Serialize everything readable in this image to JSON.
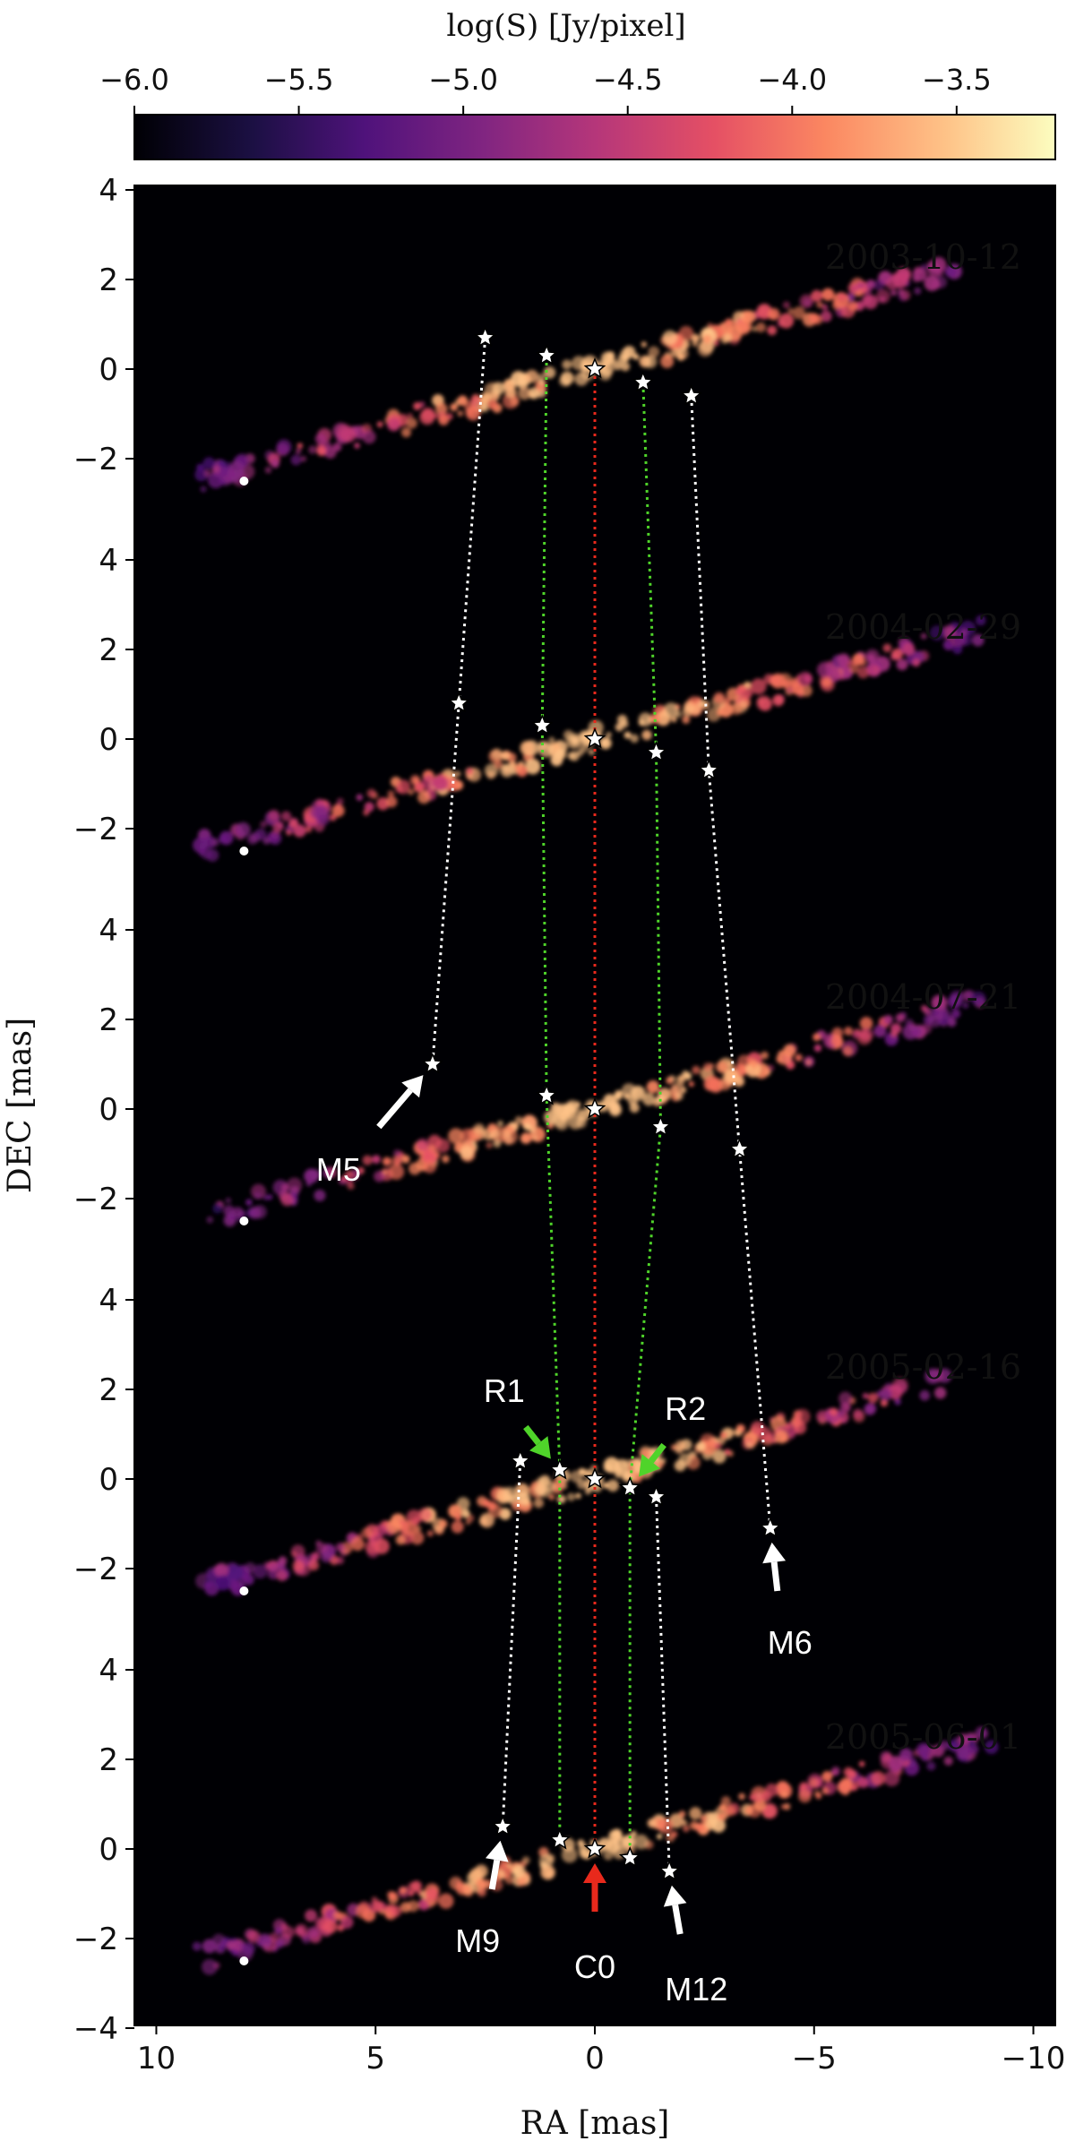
{
  "chart_data": {
    "type": "image",
    "colorbar": {
      "label": "log(S) [Jy/pixel]",
      "range": [
        -6.0,
        -3.2
      ],
      "ticks": [
        "−6.0",
        "−5.5",
        "−5.0",
        "−4.5",
        "−4.0",
        "−3.5"
      ],
      "tick_values": [
        -6.0,
        -5.5,
        -5.0,
        -4.5,
        -4.0,
        -3.5
      ],
      "colormap": "magma"
    },
    "xlabel": "RA [mas]",
    "ylabel": "DEC [mas]",
    "xlim": [
      10.5,
      -10.5
    ],
    "xticks": [
      "10",
      "5",
      "0",
      "−5",
      "−10"
    ],
    "xtick_values": [
      10,
      5,
      0,
      -5,
      -10
    ],
    "panel_yticks": [
      "4",
      "2",
      "0",
      "−2"
    ],
    "panel_ytick_values": [
      4,
      2,
      0,
      -2
    ],
    "bottom_ytick": "−4",
    "beam_position": [
      8.0,
      -2.5
    ],
    "panels": [
      {
        "date": "2003-10-12",
        "features": [
          {
            "name": "M5",
            "ra": 2.5,
            "dec": 0.7
          },
          {
            "name": "R1",
            "ra": 1.1,
            "dec": 0.3
          },
          {
            "name": "C0",
            "ra": 0.0,
            "dec": 0.0
          },
          {
            "name": "R2",
            "ra": -1.1,
            "dec": -0.3
          },
          {
            "name": "M6",
            "ra": -2.2,
            "dec": -0.6
          }
        ]
      },
      {
        "date": "2004-02-29",
        "features": [
          {
            "name": "M5",
            "ra": 3.1,
            "dec": 0.8
          },
          {
            "name": "R1",
            "ra": 1.2,
            "dec": 0.3
          },
          {
            "name": "C0",
            "ra": 0.0,
            "dec": 0.0
          },
          {
            "name": "R2",
            "ra": -1.4,
            "dec": -0.3
          },
          {
            "name": "M6",
            "ra": -2.6,
            "dec": -0.7
          }
        ]
      },
      {
        "date": "2004-07-21",
        "features": [
          {
            "name": "M5",
            "ra": 3.7,
            "dec": 1.0
          },
          {
            "name": "R1",
            "ra": 1.1,
            "dec": 0.3
          },
          {
            "name": "C0",
            "ra": 0.0,
            "dec": 0.0
          },
          {
            "name": "R2",
            "ra": -1.5,
            "dec": -0.4
          },
          {
            "name": "M6",
            "ra": -3.3,
            "dec": -0.9
          }
        ]
      },
      {
        "date": "2005-02-16",
        "features": [
          {
            "name": "M9",
            "ra": 1.7,
            "dec": 0.4
          },
          {
            "name": "R1",
            "ra": 0.8,
            "dec": 0.2
          },
          {
            "name": "C0",
            "ra": 0.0,
            "dec": 0.0
          },
          {
            "name": "R2",
            "ra": -0.8,
            "dec": -0.2
          },
          {
            "name": "M12",
            "ra": -1.4,
            "dec": -0.4
          },
          {
            "name": "M6",
            "ra": -4.0,
            "dec": -1.1
          }
        ]
      },
      {
        "date": "2005-06-01",
        "features": [
          {
            "name": "M9",
            "ra": 2.1,
            "dec": 0.5
          },
          {
            "name": "R1",
            "ra": 0.8,
            "dec": 0.2
          },
          {
            "name": "C0",
            "ra": 0.0,
            "dec": 0.0
          },
          {
            "name": "R2",
            "ra": -0.8,
            "dec": -0.2
          },
          {
            "name": "M12",
            "ra": -1.7,
            "dec": -0.5
          }
        ]
      }
    ],
    "tracks": [
      {
        "name": "M5",
        "color": "#ffffff",
        "panels": [
          0,
          1,
          2
        ]
      },
      {
        "name": "R1",
        "color": "#4fd42a",
        "panels": [
          0,
          1,
          2,
          3,
          4
        ]
      },
      {
        "name": "C0",
        "color": "#e8291c",
        "panels": [
          0,
          1,
          2,
          3,
          4
        ]
      },
      {
        "name": "R2",
        "color": "#4fd42a",
        "panels": [
          0,
          1,
          2,
          3,
          4
        ]
      },
      {
        "name": "M6",
        "color": "#ffffff",
        "panels": [
          0,
          1,
          2,
          3
        ]
      },
      {
        "name": "M9",
        "color": "#ffffff",
        "panels": [
          3,
          4
        ]
      },
      {
        "name": "M12",
        "color": "#ffffff",
        "panels": [
          3,
          4
        ]
      }
    ],
    "annotations": [
      {
        "text": "M5",
        "panel": 2,
        "target": "M5",
        "color": "#ffffff"
      },
      {
        "text": "R1",
        "panel": 3,
        "target": "R1",
        "color": "#4fd42a"
      },
      {
        "text": "R2",
        "panel": 3,
        "target": "R2",
        "color": "#4fd42a"
      },
      {
        "text": "M6",
        "panel": 3,
        "target": "M6",
        "color": "#ffffff"
      },
      {
        "text": "M9",
        "panel": 4,
        "target": "M9",
        "color": "#ffffff"
      },
      {
        "text": "C0",
        "panel": 4,
        "target": "C0",
        "color": "#e8291c"
      },
      {
        "text": "M12",
        "panel": 4,
        "target": "M12",
        "color": "#ffffff"
      }
    ]
  }
}
